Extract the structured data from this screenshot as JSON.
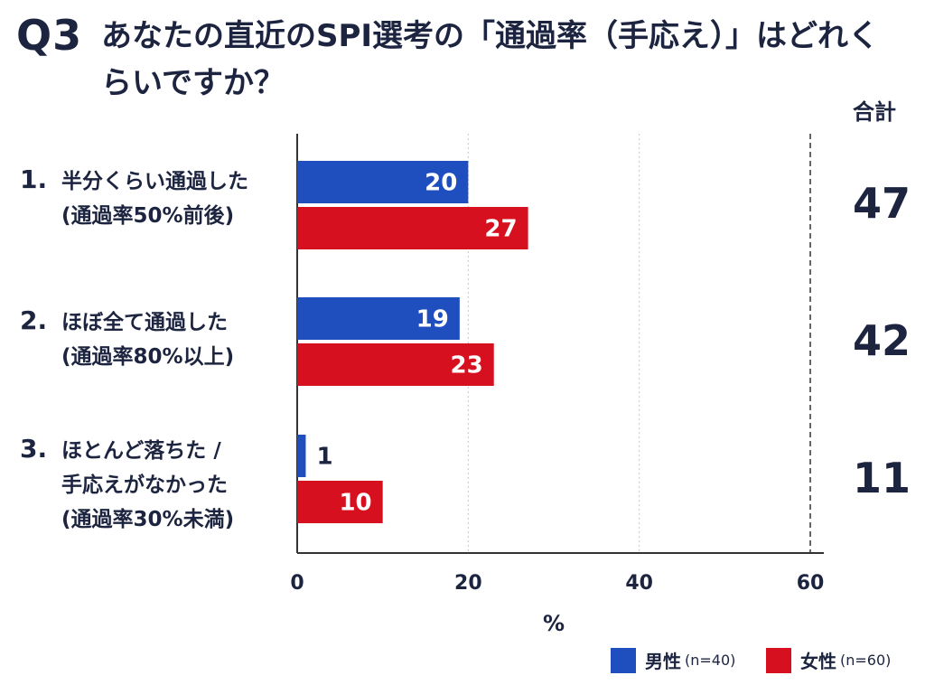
{
  "question": {
    "number": "Q3",
    "title": "あなたの直近のSPI選考の「通過率（手応え）」はどれくらいですか？"
  },
  "total_header": "合計",
  "categories": [
    {
      "num": "1.",
      "label": "半分くらい通過した",
      "sub": [
        "(通過率50%前後)"
      ],
      "total": "47"
    },
    {
      "num": "2.",
      "label": "ほぼ全て通過した",
      "sub": [
        "(通過率80%以上)"
      ],
      "total": "42"
    },
    {
      "num": "3.",
      "label": "ほとんど落ちた /",
      "sub": [
        "手応えがなかった",
        "(通過率30%未満)"
      ],
      "total": "11"
    }
  ],
  "legend": [
    {
      "label": "男性",
      "n": "(n=40)",
      "color": "#1f4fbf"
    },
    {
      "label": "女性",
      "n": "(n=60)",
      "color": "#d6101e"
    }
  ],
  "chart_data": {
    "type": "bar",
    "orientation": "horizontal",
    "title": "あなたの直近のSPI選考の「通過率（手応え）」はどれくらいですか？",
    "categories": [
      "半分くらい通過した(通過率50%前後)",
      "ほぼ全て通過した(通過率80%以上)",
      "ほとんど落ちた / 手応えがなかった(通過率30%未満)"
    ],
    "series": [
      {
        "name": "男性 (n=40)",
        "values": [
          20,
          19,
          1
        ],
        "color": "#1f4fbf"
      },
      {
        "name": "女性 (n=60)",
        "values": [
          27,
          23,
          10
        ],
        "color": "#d6101e"
      }
    ],
    "totals": [
      47,
      42,
      11
    ],
    "xlabel": "%",
    "ylabel": "",
    "xlim": [
      0,
      60
    ],
    "xticks": [
      0,
      20,
      40,
      60
    ],
    "grid": true,
    "legend": "bottom-right"
  }
}
